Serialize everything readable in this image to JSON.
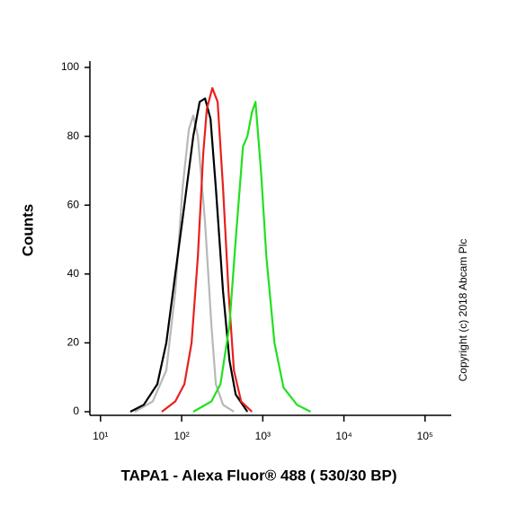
{
  "chart_data": {
    "type": "line",
    "y_label": "Counts",
    "x_label": "TAPA1 - Alexa Fluor® 488 ( 530/30 BP)",
    "annotation": "Copyright (c) 2018 Abcam Plc",
    "log_x": true,
    "xlim": [
      7.4,
      200000
    ],
    "xticks": [
      {
        "value": 10,
        "label": "10¹"
      },
      {
        "value": 100,
        "label": "10²"
      },
      {
        "value": 1000,
        "label": "10³"
      },
      {
        "value": 10000,
        "label": "10⁴"
      },
      {
        "value": 100000,
        "label": "10⁵"
      }
    ],
    "ylim": [
      0,
      100
    ],
    "yticks": [
      0,
      20,
      40,
      60,
      80,
      100
    ],
    "series": [
      {
        "color": "#b8b8b8",
        "x": [
          26.4,
          44,
          64.7,
          83.6,
          102.6,
          122.7,
          139,
          158.5,
          194.5,
          232.7,
          264,
          324,
          441
        ],
        "values": [
          0,
          3,
          12,
          35,
          65,
          82,
          86,
          80,
          55,
          25,
          8,
          2,
          0
        ]
      },
      {
        "color": "#000000",
        "x": [
          23.3,
          34.1,
          50.1,
          64.7,
          83.6,
          108,
          139,
          166.8,
          194.5,
          226.8,
          264,
          324,
          388,
          464,
          647
        ],
        "values": [
          0,
          2,
          8,
          20,
          40,
          60,
          80,
          90,
          91,
          85,
          65,
          35,
          15,
          5,
          0
        ]
      },
      {
        "color": "#e8201c",
        "x": [
          57,
          83.6,
          108,
          132.5,
          158.5,
          184.8,
          204.7,
          238.7,
          278,
          324,
          378,
          441,
          541,
          736
        ],
        "values": [
          0,
          3,
          8,
          20,
          45,
          75,
          88,
          94,
          90,
          65,
          35,
          12,
          3,
          0
        ]
      },
      {
        "color": "#22e01e",
        "x": [
          139,
          232.7,
          300.6,
          388,
          464,
          570,
          647,
          736,
          814,
          950,
          1107,
          1394,
          1801,
          2640,
          3880
        ],
        "values": [
          0,
          3,
          8,
          25,
          50,
          77,
          80,
          87,
          90,
          70,
          45,
          20,
          7,
          2,
          0
        ]
      }
    ]
  }
}
